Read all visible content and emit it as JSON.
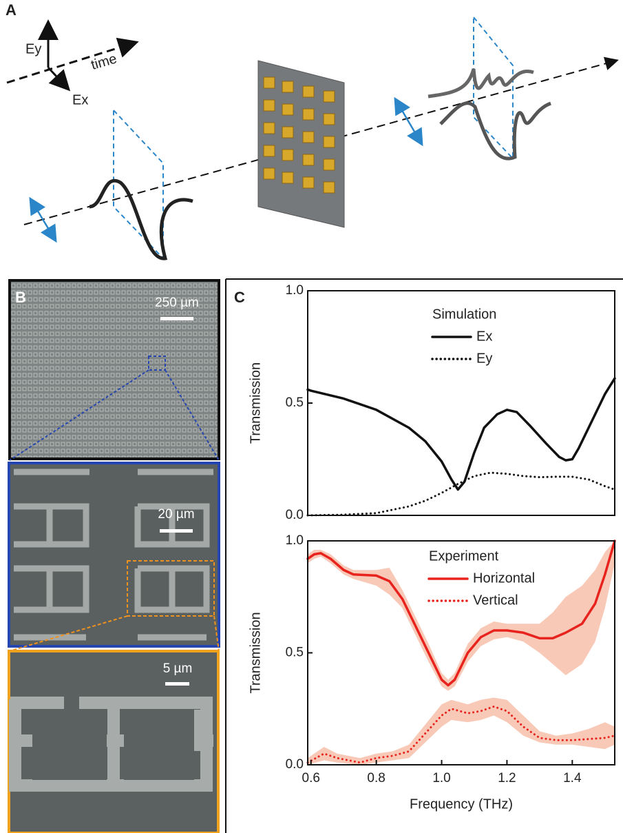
{
  "panel_labels": [
    "A",
    "B",
    "C"
  ],
  "diagram": {
    "ey": "Ey",
    "ex": "Ex",
    "time": "time"
  },
  "scale_bars": [
    "250 µm",
    "20 µm",
    "5 µm"
  ],
  "chart_data": [
    {
      "type": "line",
      "legend_title": "Simulation",
      "ylabel": "Transmission",
      "xlim": [
        0.59,
        1.53
      ],
      "ylim": [
        0,
        1
      ],
      "yticks": [
        {
          "value": 0,
          "label": "0.0"
        },
        {
          "value": 0.5,
          "label": "0.5"
        },
        {
          "value": 1,
          "label": "1.0"
        }
      ],
      "series": [
        {
          "name": "Ex",
          "color": "#111111",
          "style": "solid",
          "x": [
            0.59,
            0.6,
            0.7,
            0.8,
            0.9,
            0.95,
            1.0,
            1.03,
            1.05,
            1.07,
            1.1,
            1.13,
            1.17,
            1.2,
            1.23,
            1.27,
            1.32,
            1.36,
            1.38,
            1.4,
            1.42,
            1.46,
            1.5,
            1.53
          ],
          "values": [
            0.56,
            0.555,
            0.52,
            0.47,
            0.39,
            0.33,
            0.24,
            0.16,
            0.115,
            0.15,
            0.28,
            0.39,
            0.45,
            0.47,
            0.46,
            0.4,
            0.32,
            0.26,
            0.245,
            0.25,
            0.3,
            0.42,
            0.54,
            0.61
          ]
        },
        {
          "name": "Ey",
          "color": "#111111",
          "style": "dotted",
          "x": [
            0.59,
            0.7,
            0.8,
            0.9,
            0.95,
            1.0,
            1.05,
            1.1,
            1.15,
            1.2,
            1.25,
            1.3,
            1.35,
            1.4,
            1.45,
            1.5,
            1.53
          ],
          "values": [
            0,
            0.003,
            0.01,
            0.04,
            0.065,
            0.1,
            0.14,
            0.175,
            0.19,
            0.185,
            0.175,
            0.17,
            0.172,
            0.172,
            0.16,
            0.13,
            0.115
          ]
        }
      ]
    },
    {
      "type": "line",
      "legend_title": "Experiment",
      "ylabel": "Transmission",
      "xlabel": "Frequency (THz)",
      "xlim": [
        0.59,
        1.53
      ],
      "ylim": [
        0,
        1
      ],
      "xticks": [
        0.6,
        0.8,
        {
          "value": 1,
          "label": "1.0"
        },
        1.2,
        1.4
      ],
      "yticks": [
        {
          "value": 0,
          "label": "0.0"
        },
        {
          "value": 0.5,
          "label": "0.5"
        },
        {
          "value": 1,
          "label": "1.0"
        }
      ],
      "series": [
        {
          "name": "Horizontal",
          "color": "#e8221d",
          "style": "solid",
          "band_color": "#f9c9b8",
          "x": [
            0.59,
            0.61,
            0.63,
            0.66,
            0.7,
            0.73,
            0.8,
            0.84,
            0.88,
            0.92,
            0.96,
            1.0,
            1.02,
            1.04,
            1.08,
            1.12,
            1.16,
            1.2,
            1.25,
            1.3,
            1.34,
            1.38,
            1.43,
            1.47,
            1.5,
            1.53
          ],
          "values": [
            0.92,
            0.94,
            0.945,
            0.92,
            0.87,
            0.85,
            0.845,
            0.82,
            0.74,
            0.62,
            0.5,
            0.38,
            0.355,
            0.38,
            0.5,
            0.57,
            0.6,
            0.6,
            0.59,
            0.565,
            0.565,
            0.59,
            0.63,
            0.72,
            0.85,
            1.0
          ],
          "band_lower": [
            0.9,
            0.92,
            0.93,
            0.9,
            0.85,
            0.83,
            0.8,
            0.76,
            0.7,
            0.58,
            0.46,
            0.35,
            0.33,
            0.35,
            0.46,
            0.53,
            0.56,
            0.57,
            0.55,
            0.5,
            0.45,
            0.4,
            0.45,
            0.55,
            0.7,
            0.9
          ],
          "band_upper": [
            0.94,
            0.96,
            0.96,
            0.94,
            0.89,
            0.87,
            0.87,
            0.88,
            0.78,
            0.66,
            0.54,
            0.41,
            0.38,
            0.41,
            0.54,
            0.61,
            0.64,
            0.63,
            0.63,
            0.63,
            0.68,
            0.75,
            0.8,
            0.87,
            0.95,
            1.0
          ]
        },
        {
          "name": "Vertical",
          "color": "#e8221d",
          "style": "dotted",
          "band_color": "#f9c9b8",
          "x": [
            0.59,
            0.64,
            0.68,
            0.75,
            0.8,
            0.85,
            0.9,
            0.95,
            1.0,
            1.03,
            1.08,
            1.12,
            1.16,
            1.2,
            1.25,
            1.3,
            1.35,
            1.4,
            1.45,
            1.5,
            1.53
          ],
          "values": [
            0.01,
            0.05,
            0.03,
            0.01,
            0.03,
            0.04,
            0.06,
            0.14,
            0.22,
            0.25,
            0.23,
            0.24,
            0.26,
            0.24,
            0.17,
            0.12,
            0.11,
            0.11,
            0.115,
            0.12,
            0.13
          ],
          "band_lower": [
            0,
            0.02,
            0.01,
            0,
            0.01,
            0.02,
            0.03,
            0.1,
            0.17,
            0.2,
            0.19,
            0.2,
            0.22,
            0.19,
            0.13,
            0.1,
            0.09,
            0.09,
            0.08,
            0.07,
            0.09
          ],
          "band_upper": [
            0.03,
            0.08,
            0.05,
            0.03,
            0.05,
            0.06,
            0.09,
            0.18,
            0.27,
            0.29,
            0.27,
            0.29,
            0.3,
            0.29,
            0.22,
            0.15,
            0.13,
            0.14,
            0.16,
            0.19,
            0.17
          ]
        }
      ]
    }
  ]
}
